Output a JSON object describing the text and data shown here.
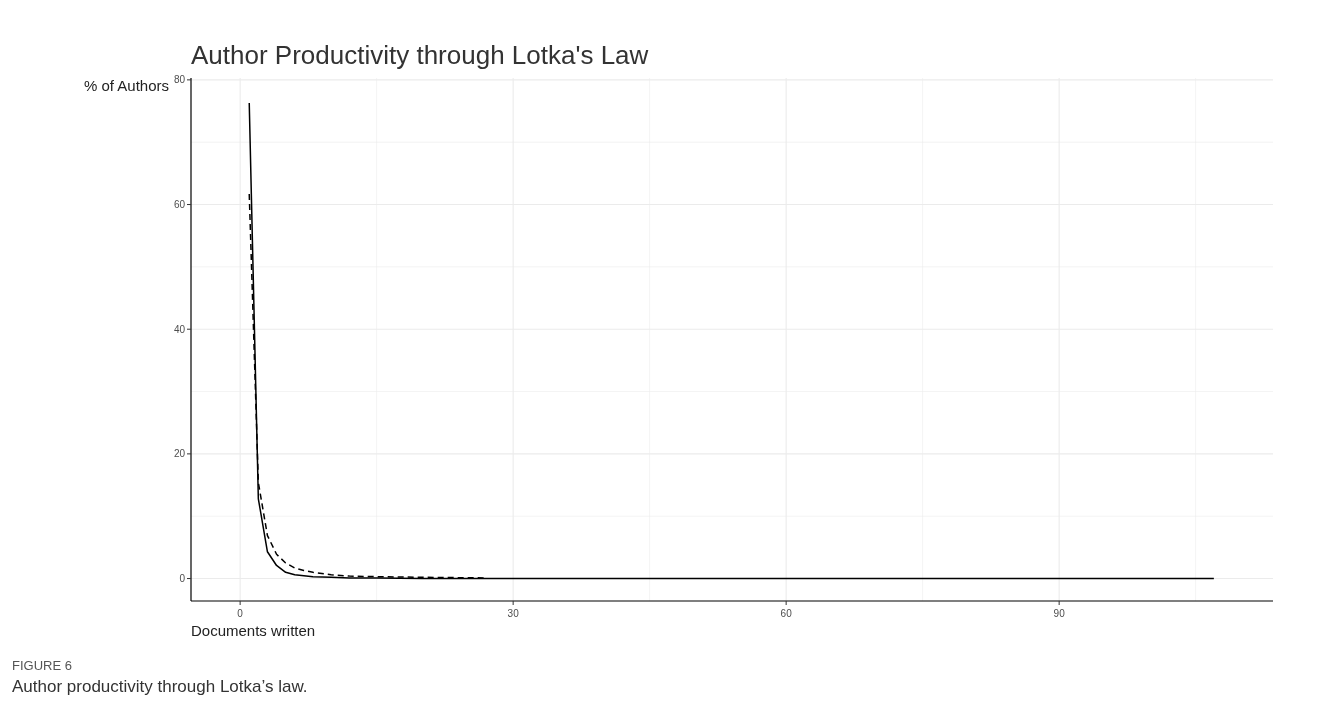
{
  "chart_data": {
    "type": "line",
    "title": "Author Productivity through Lotka's Law",
    "xlabel": "Documents written",
    "ylabel": "% of Authors",
    "annotations": [
      "FIGURE 6",
      "Author productivity through Lotka’s law."
    ],
    "xlim": [
      -5.4,
      113.5
    ],
    "ylim": [
      -3.6,
      80.3
    ],
    "xticks": [
      0,
      {
        "value": 15,
        "label": null
      },
      30,
      {
        "value": 45,
        "label": null
      },
      60,
      {
        "value": 75,
        "label": null
      },
      90,
      {
        "value": 105,
        "label": null
      }
    ],
    "yticks": [
      0,
      {
        "value": 10,
        "label": null
      },
      20,
      {
        "value": 30,
        "label": null
      },
      40,
      {
        "value": 50,
        "label": null
      },
      60,
      {
        "value": 70,
        "label": null
      },
      80
    ],
    "grid": true,
    "series": [
      {
        "color": "#000000",
        "line_style": "solid",
        "x": [
          1,
          2,
          3,
          4,
          5,
          6,
          8,
          10,
          12,
          15,
          20,
          30,
          50,
          107
        ],
        "values": [
          76.3,
          12.8,
          4.3,
          2.1,
          1.0,
          0.6,
          0.3,
          0.2,
          0.1,
          0.1,
          0,
          0,
          0,
          0
        ]
      },
      {
        "color": "#000000",
        "line_style": "dashed",
        "x": [
          1,
          2,
          3,
          4,
          5,
          6,
          7,
          8,
          10,
          12,
          15,
          20,
          27
        ],
        "values": [
          61.7,
          15.4,
          6.9,
          3.9,
          2.5,
          1.7,
          1.3,
          1.0,
          0.6,
          0.4,
          0.3,
          0.2,
          0.1
        ]
      }
    ]
  }
}
